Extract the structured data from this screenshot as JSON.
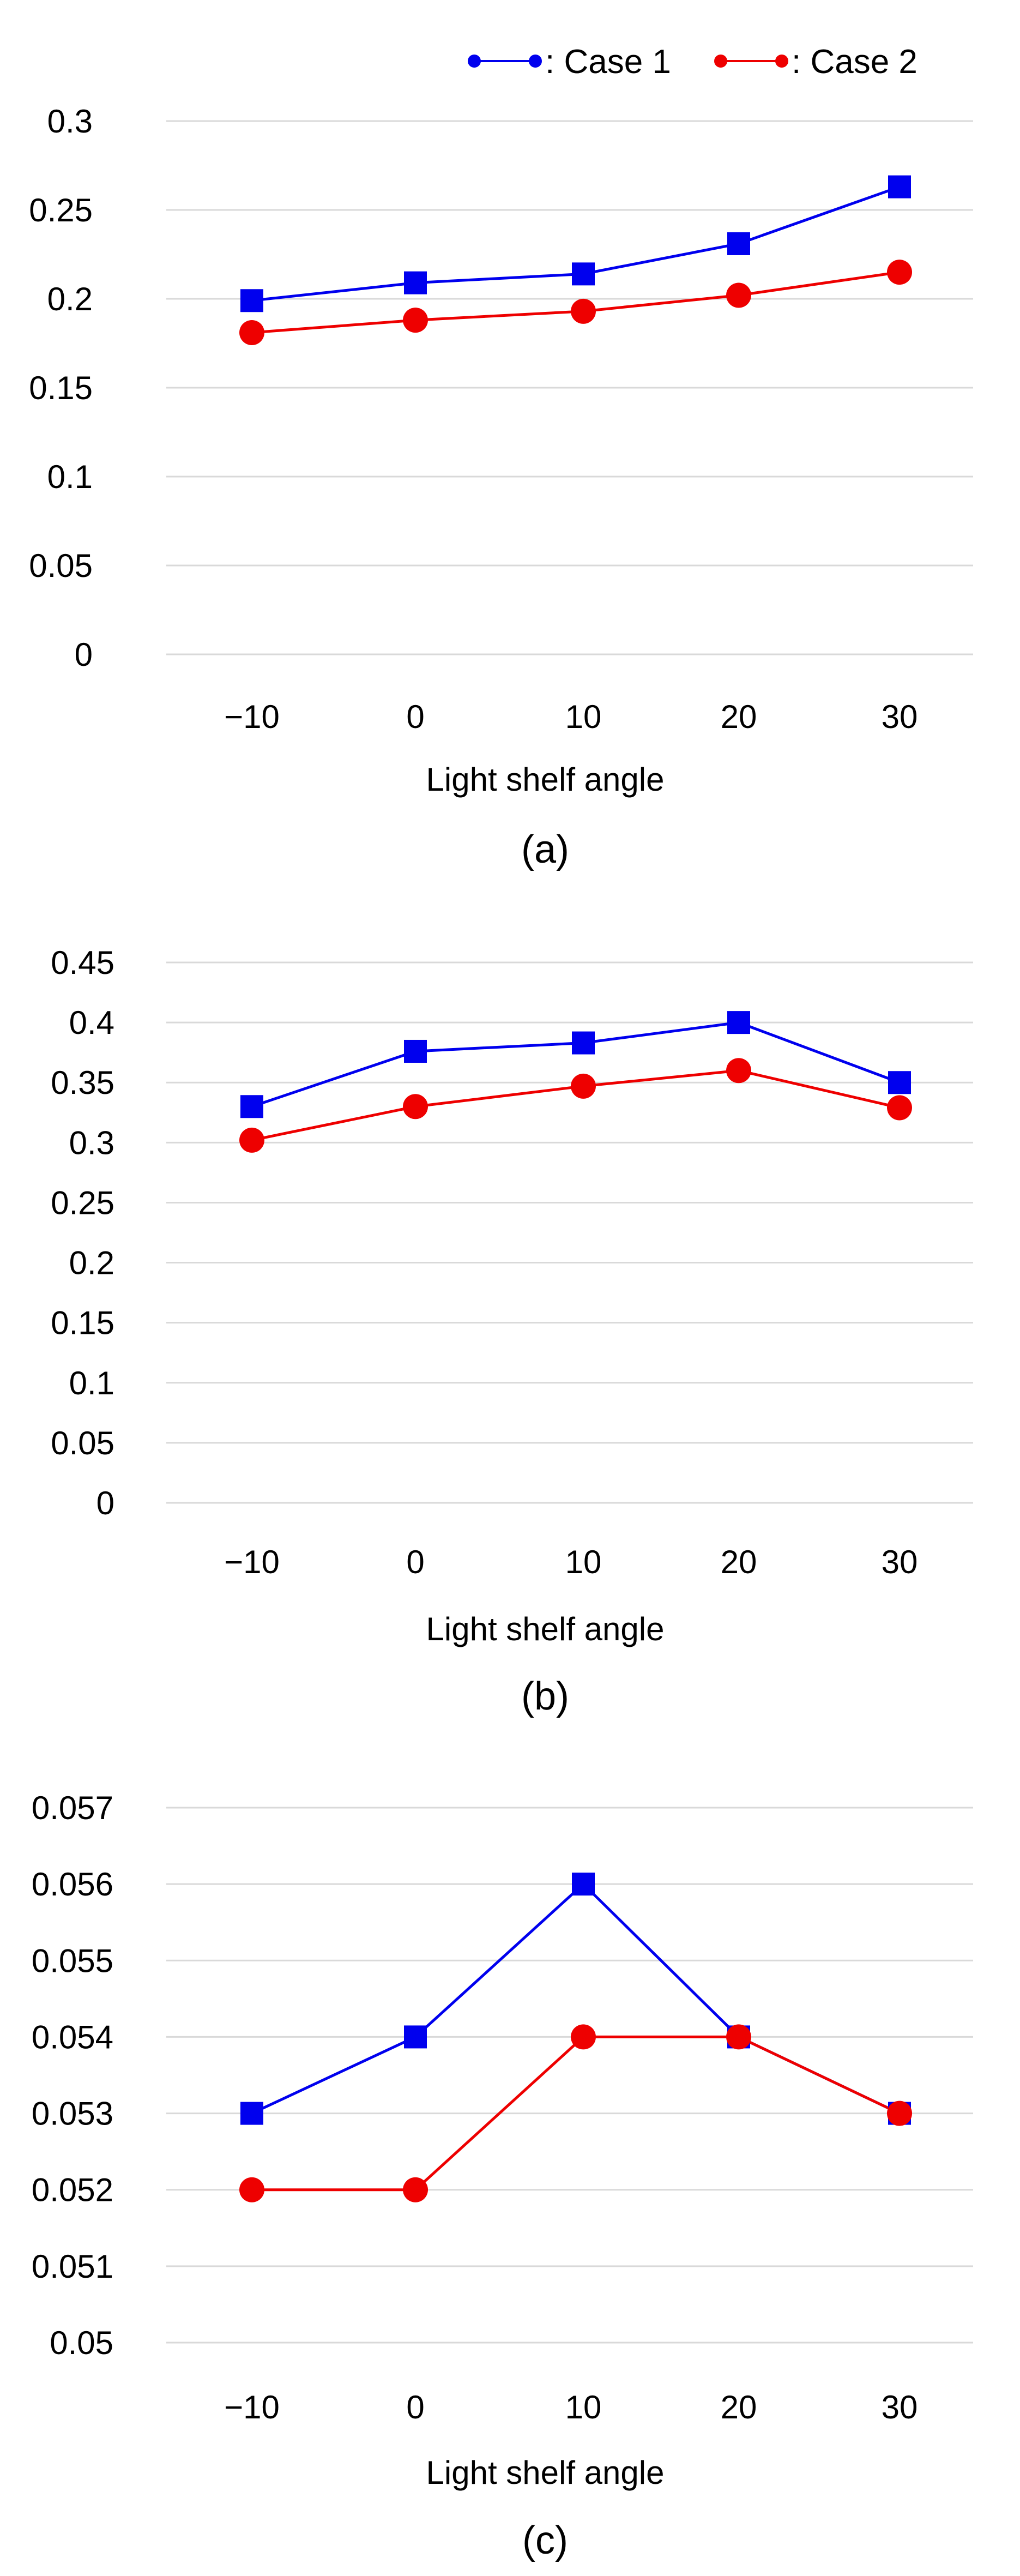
{
  "legend": {
    "items": [
      {
        "label": ": Case 1",
        "color": "#0000ee",
        "marker": "circle"
      },
      {
        "label": ": Case 2",
        "color": "#ee0000",
        "marker": "circle"
      }
    ]
  },
  "chart_data": [
    {
      "type": "line",
      "caption": "(a)",
      "xlabel": "Light shelf angle",
      "ylabel": "",
      "categories": [
        "−10",
        "0",
        "10",
        "20",
        "30"
      ],
      "ylim": [
        0,
        0.3
      ],
      "yticks": [
        "0",
        "0.05",
        "0.1",
        "0.15",
        "0.2",
        "0.25",
        "0.3"
      ],
      "series": [
        {
          "name": "Case 1",
          "color": "#0000ee",
          "marker": "square",
          "values": [
            0.199,
            0.209,
            0.214,
            0.231,
            0.263
          ]
        },
        {
          "name": "Case 2",
          "color": "#ee0000",
          "marker": "circle",
          "values": [
            0.181,
            0.188,
            0.193,
            0.202,
            0.215
          ]
        }
      ]
    },
    {
      "type": "line",
      "caption": "(b)",
      "xlabel": "Light shelf angle",
      "ylabel": "",
      "categories": [
        "−10",
        "0",
        "10",
        "20",
        "30"
      ],
      "ylim": [
        0,
        0.45
      ],
      "yticks": [
        "0",
        "0.05",
        "0.1",
        "0.15",
        "0.2",
        "0.25",
        "0.3",
        "0.35",
        "0.4",
        "0.45"
      ],
      "series": [
        {
          "name": "Case 1",
          "color": "#0000ee",
          "marker": "square",
          "values": [
            0.33,
            0.376,
            0.383,
            0.4,
            0.35
          ]
        },
        {
          "name": "Case 2",
          "color": "#ee0000",
          "marker": "circle",
          "values": [
            0.302,
            0.33,
            0.347,
            0.36,
            0.329
          ]
        }
      ]
    },
    {
      "type": "line",
      "caption": "(c)",
      "xlabel": "Light shelf angle",
      "ylabel": "",
      "categories": [
        "−10",
        "0",
        "10",
        "20",
        "30"
      ],
      "ylim": [
        0.05,
        0.057
      ],
      "yticks": [
        "0.05",
        "0.051",
        "0.052",
        "0.053",
        "0.054",
        "0.055",
        "0.056",
        "0.057"
      ],
      "series": [
        {
          "name": "Case 1",
          "color": "#0000ee",
          "marker": "square",
          "values": [
            0.053,
            0.054,
            0.056,
            0.054,
            0.053
          ]
        },
        {
          "name": "Case 2",
          "color": "#ee0000",
          "marker": "circle",
          "values": [
            0.052,
            0.052,
            0.054,
            0.054,
            0.053
          ]
        }
      ]
    }
  ]
}
